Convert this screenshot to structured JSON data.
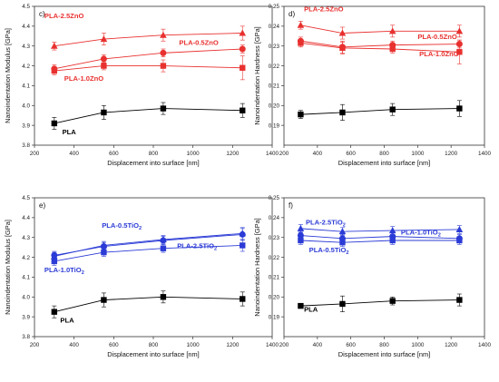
{
  "chart_data": [
    {
      "type": "line",
      "panel_label": "c)",
      "xlabel": "Displacement into surface [nm]",
      "ylabel": "Nanoindentation Modulus [GPa]",
      "xlim": [
        200,
        1400
      ],
      "ylim": [
        3.8,
        4.5
      ],
      "xticks": [
        200,
        400,
        600,
        800,
        1000,
        1200,
        1400
      ],
      "yticks": [
        3.8,
        3.9,
        4.0,
        4.1,
        4.2,
        4.3,
        4.4,
        4.5
      ],
      "ytick_labels": [
        "3.8",
        "3.9",
        "4.0",
        "4.1",
        "4.2",
        "4.3",
        "4.4",
        "4.5"
      ],
      "x": [
        300,
        550,
        850,
        1250
      ],
      "series": [
        {
          "name": "PLA",
          "color": "#000000",
          "marker": "square",
          "values": [
            3.91,
            3.965,
            3.985,
            3.975
          ],
          "err": [
            0.03,
            0.035,
            0.03,
            0.035
          ]
        },
        {
          "name": "PLA-2.5ZnO",
          "color": "#e8312f",
          "marker": "triangle",
          "values": [
            4.3,
            4.335,
            4.355,
            4.365
          ],
          "err": [
            0.02,
            0.03,
            0.03,
            0.035
          ]
        },
        {
          "name": "PLA-0.5ZnO",
          "color": "#e8312f",
          "marker": "circle",
          "values": [
            4.185,
            4.235,
            4.265,
            4.285
          ],
          "err": [
            0.02,
            0.02,
            0.02,
            0.02
          ]
        },
        {
          "name": "PLA-1.0ZnO",
          "color": "#e8312f",
          "marker": "square",
          "values": [
            4.175,
            4.2,
            4.2,
            4.19
          ],
          "err": [
            0.02,
            0.02,
            0.03,
            0.06
          ]
        }
      ],
      "labels": [
        {
          "text": "PLA-2.5ZnO",
          "x": 250,
          "y": 4.44,
          "color": "#e8312f"
        },
        {
          "text": "PLA-0.5ZnO",
          "x": 930,
          "y": 4.305,
          "color": "#e8312f"
        },
        {
          "text": "PLA-1.0ZnO",
          "x": 350,
          "y": 4.125,
          "color": "#e8312f"
        },
        {
          "text": "PLA",
          "x": 340,
          "y": 3.855,
          "color": "#000000"
        }
      ]
    },
    {
      "type": "line",
      "panel_label": "d)",
      "xlabel": "Displacement into surface [nm]",
      "ylabel": "Nanoindentation Hardness [GPa]",
      "xlim": [
        200,
        1400
      ],
      "ylim": [
        0.18,
        0.25
      ],
      "xticks": [
        200,
        400,
        600,
        800,
        1000,
        1200,
        1400
      ],
      "yticks": [
        0.19,
        0.2,
        0.21,
        0.22,
        0.23,
        0.24,
        0.25
      ],
      "ytick_labels": [
        "0.19",
        "0.20",
        "0.21",
        "0.22",
        "0.23",
        "0.24",
        "0.25"
      ],
      "x": [
        300,
        550,
        850,
        1250
      ],
      "series": [
        {
          "name": "PLA",
          "color": "#000000",
          "marker": "square",
          "values": [
            0.1955,
            0.1965,
            0.198,
            0.1985
          ],
          "err": [
            0.002,
            0.004,
            0.003,
            0.004
          ]
        },
        {
          "name": "PLA-2.5ZnO",
          "color": "#e8312f",
          "marker": "triangle",
          "values": [
            0.2405,
            0.2365,
            0.2375,
            0.2375
          ],
          "err": [
            0.002,
            0.003,
            0.003,
            0.003
          ]
        },
        {
          "name": "PLA-0.5ZnO",
          "color": "#e8312f",
          "marker": "circle",
          "values": [
            0.2325,
            0.2295,
            0.2305,
            0.231
          ],
          "err": [
            0.002,
            0.003,
            0.002,
            0.002
          ]
        },
        {
          "name": "PLA-1.0ZnO",
          "color": "#e8312f",
          "marker": "square",
          "values": [
            0.2315,
            0.229,
            0.2285,
            0.227
          ],
          "err": [
            0.002,
            0.003,
            0.002,
            0.006
          ]
        }
      ],
      "labels": [
        {
          "text": "PLA-2.5ZnO",
          "x": 320,
          "y": 0.2475,
          "color": "#e8312f"
        },
        {
          "text": "PLA-0.5ZnO",
          "x": 1000,
          "y": 0.2335,
          "color": "#e8312f"
        },
        {
          "text": "PLA-1.0ZnO",
          "x": 1010,
          "y": 0.2248,
          "color": "#e8312f"
        }
      ]
    },
    {
      "type": "line",
      "panel_label": "e)",
      "xlabel": "Displacement into surface [nm]",
      "ylabel": "Nanoindentation Modulus [GPa]",
      "xlim": [
        200,
        1400
      ],
      "ylim": [
        3.8,
        4.5
      ],
      "xticks": [
        200,
        400,
        600,
        800,
        1000,
        1200,
        1400
      ],
      "yticks": [
        3.8,
        3.9,
        4.0,
        4.1,
        4.2,
        4.3,
        4.4,
        4.5
      ],
      "ytick_labels": [
        "3.8",
        "3.9",
        "4.0",
        "4.1",
        "4.2",
        "4.3",
        "4.4",
        "4.5"
      ],
      "x": [
        300,
        550,
        850,
        1250
      ],
      "series": [
        {
          "name": "PLA",
          "color": "#000000",
          "marker": "square",
          "values": [
            3.925,
            3.985,
            4.0,
            3.99
          ],
          "err": [
            0.03,
            0.035,
            0.03,
            0.035
          ]
        },
        {
          "name": "PLA-0.5TiO2",
          "color": "#2b3bd6",
          "marker": "circle",
          "values": [
            4.21,
            4.255,
            4.285,
            4.315
          ],
          "err": [
            0.02,
            0.02,
            0.02,
            0.03
          ]
        },
        {
          "name": "PLA-2.5TiO2",
          "color": "#2b3bd6",
          "marker": "triangle",
          "values": [
            4.205,
            4.26,
            4.29,
            4.32
          ],
          "err": [
            0.02,
            0.02,
            0.02,
            0.03
          ]
        },
        {
          "name": "PLA-1.0TiO2",
          "color": "#2b3bd6",
          "marker": "square",
          "values": [
            4.18,
            4.225,
            4.245,
            4.26
          ],
          "err": [
            0.02,
            0.02,
            0.02,
            0.03
          ]
        }
      ],
      "labels": [
        {
          "text": "PLA-0.5TiO",
          "sub": "2",
          "x": 540,
          "y": 4.35,
          "color": "#2b3bd6"
        },
        {
          "text": "PLA-2.5TiO",
          "sub": "2",
          "x": 920,
          "y": 4.245,
          "color": "#2b3bd6"
        },
        {
          "text": "PLA-1.0TiO",
          "sub": "2",
          "x": 250,
          "y": 4.125,
          "color": "#2b3bd6"
        },
        {
          "text": "PLA",
          "x": 330,
          "y": 3.87,
          "color": "#000000"
        }
      ]
    },
    {
      "type": "line",
      "panel_label": "f)",
      "xlabel": "Displacement into surface [nm]",
      "ylabel": "Nanoindentation Hardness [GPa]",
      "xlim": [
        200,
        1400
      ],
      "ylim": [
        0.18,
        0.25
      ],
      "xticks": [
        200,
        400,
        600,
        800,
        1000,
        1200,
        1400
      ],
      "yticks": [
        0.19,
        0.2,
        0.21,
        0.22,
        0.23,
        0.24,
        0.25
      ],
      "ytick_labels": [
        "0.19",
        "0.20",
        "0.21",
        "0.22",
        "0.23",
        "0.24",
        "0.25"
      ],
      "x": [
        300,
        550,
        850,
        1250
      ],
      "series": [
        {
          "name": "PLA",
          "color": "#000000",
          "marker": "square",
          "values": [
            0.1955,
            0.1965,
            0.198,
            0.1985
          ],
          "err": [
            0.001,
            0.004,
            0.002,
            0.003
          ]
        },
        {
          "name": "PLA-2.5TiO2",
          "color": "#2b3bd6",
          "marker": "triangle",
          "values": [
            0.2345,
            0.233,
            0.2335,
            0.234
          ],
          "err": [
            0.002,
            0.002,
            0.002,
            0.002
          ]
        },
        {
          "name": "PLA-1.0TiO2",
          "color": "#2b3bd6",
          "marker": "circle",
          "values": [
            0.231,
            0.2295,
            0.2305,
            0.2295
          ],
          "err": [
            0.002,
            0.002,
            0.002,
            0.002
          ]
        },
        {
          "name": "PLA-0.5TiO2",
          "color": "#2b3bd6",
          "marker": "square",
          "values": [
            0.2285,
            0.2275,
            0.2285,
            0.2285
          ],
          "err": [
            0.002,
            0.002,
            0.002,
            0.002
          ]
        }
      ],
      "labels": [
        {
          "text": "PLA-2.5TiO",
          "sub": "2",
          "x": 330,
          "y": 0.2365,
          "color": "#2b3bd6"
        },
        {
          "text": "PLA-1.0TiO",
          "sub": "2",
          "x": 900,
          "y": 0.2315,
          "color": "#2b3bd6"
        },
        {
          "text": "PLA-0.5TiO",
          "sub": "2",
          "x": 350,
          "y": 0.2225,
          "color": "#2b3bd6"
        },
        {
          "text": "PLA",
          "x": 320,
          "y": 0.1925,
          "color": "#000000"
        }
      ]
    }
  ]
}
